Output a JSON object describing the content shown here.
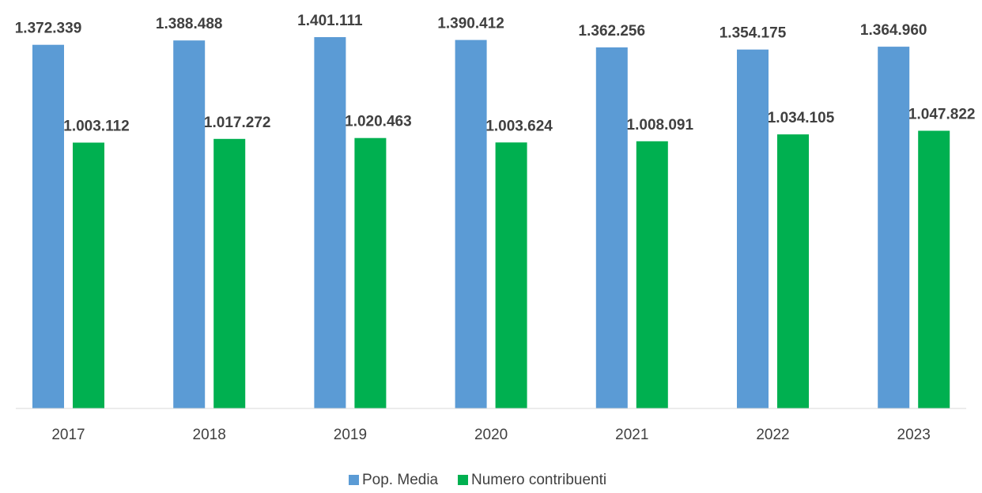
{
  "chart_data": {
    "type": "bar",
    "categories": [
      "2017",
      "2018",
      "2019",
      "2020",
      "2021",
      "2022",
      "2023"
    ],
    "series": [
      {
        "name": "Pop. Media",
        "color": "#5B9BD5",
        "values": [
          1372339,
          1388488,
          1401111,
          1390412,
          1362256,
          1354175,
          1364960
        ],
        "labels": [
          "1.372.339",
          "1.388.488",
          "1.401.111",
          "1.390.412",
          "1.362.256",
          "1.354.175",
          "1.364.960"
        ]
      },
      {
        "name": "Numero contribuenti",
        "color": "#00B050",
        "values": [
          1003112,
          1017272,
          1020463,
          1003624,
          1008091,
          1034105,
          1047822
        ],
        "labels": [
          "1.003.112",
          "1.017.272",
          "1.020.463",
          "1.003.624",
          "1.008.091",
          "1.034.105",
          "1.047.822"
        ]
      }
    ],
    "ylim": [
      0,
      1450000
    ],
    "grid": false,
    "legend_position": "bottom"
  }
}
